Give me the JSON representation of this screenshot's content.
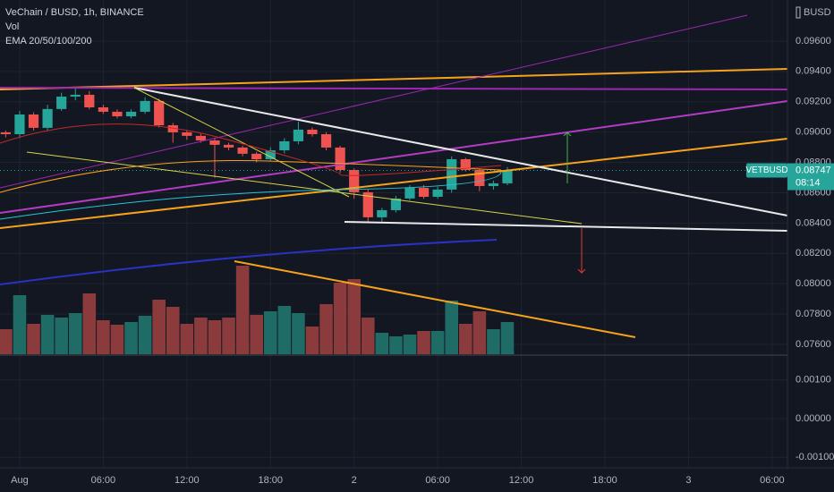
{
  "chart_data": {
    "type": "candlestick",
    "title": "VeChain / BUSD, 1h, BINANCE",
    "indicators": [
      "Vol",
      "EMA 20/50/100/200"
    ],
    "currency": "BUSD",
    "symbol": "VETBUSD",
    "last_price": 0.08747,
    "countdown": "08:14",
    "colors": {
      "up": "#26a69a",
      "down": "#ef5350",
      "volume_up": "#1f6b66",
      "volume_down": "#8c3b3d"
    },
    "open": [
      0.08998,
      0.08986,
      0.09116,
      0.09028,
      0.09152,
      0.09234,
      0.09246,
      0.09163,
      0.09134,
      0.09104,
      0.09134,
      0.09205,
      0.09045,
      0.08998,
      0.08975,
      0.08945,
      0.08916,
      0.08898,
      0.08857,
      0.08821,
      0.0888,
      0.08939,
      0.09016,
      0.08986,
      0.08898,
      0.0875,
      0.08603,
      0.08438,
      0.08485,
      0.08562,
      0.08632,
      0.08573,
      0.08621,
      0.08821,
      0.0875,
      0.08644,
      0.08662
    ],
    "high": [
      0.0901,
      0.0914,
      0.0913,
      0.0918,
      0.0926,
      0.0929,
      0.0927,
      0.0918,
      0.0915,
      0.0915,
      0.0923,
      0.0922,
      0.0906,
      0.0901,
      0.0899,
      0.0896,
      0.0893,
      0.0891,
      0.0887,
      0.089,
      0.0896,
      0.0907,
      0.0903,
      0.09,
      0.0891,
      0.0876,
      0.0862,
      0.085,
      0.0858,
      0.0865,
      0.0865,
      0.0864,
      0.0884,
      0.0883,
      0.0876,
      0.0868,
      0.0877
    ],
    "low": [
      0.08965,
      0.0896,
      0.0901,
      0.0901,
      0.0914,
      0.0921,
      0.0915,
      0.0912,
      0.0909,
      0.0909,
      0.0912,
      0.0903,
      0.0893,
      0.0895,
      0.0893,
      0.087,
      0.0888,
      0.0884,
      0.088,
      0.0881,
      0.0886,
      0.0892,
      0.0897,
      0.0888,
      0.0873,
      0.0856,
      0.084,
      0.0841,
      0.0847,
      0.0855,
      0.0856,
      0.0856,
      0.086,
      0.0874,
      0.0861,
      0.0862,
      0.0865
    ],
    "close": [
      0.08986,
      0.09116,
      0.09028,
      0.09152,
      0.09234,
      0.09246,
      0.09163,
      0.09134,
      0.09104,
      0.09134,
      0.09205,
      0.09045,
      0.08998,
      0.08975,
      0.08945,
      0.08916,
      0.08898,
      0.08857,
      0.08821,
      0.0888,
      0.08939,
      0.09016,
      0.08986,
      0.08898,
      0.0875,
      0.08603,
      0.08438,
      0.08485,
      0.08562,
      0.08632,
      0.08573,
      0.08621,
      0.08821,
      0.0875,
      0.08644,
      0.08662,
      0.08747
    ],
    "volume": [
      28,
      66,
      34,
      44,
      41,
      46,
      68,
      38,
      33,
      36,
      43,
      61,
      53,
      34,
      41,
      38,
      41,
      99,
      44,
      48,
      54,
      46,
      31,
      56,
      80,
      84,
      41,
      24,
      20,
      22,
      26,
      26,
      60,
      34,
      48,
      28,
      36
    ],
    "volume_ylim": [
      0,
      140
    ],
    "xlim": [
      -0.41,
      56.1
    ],
    "xticks": [
      {
        "value": 1,
        "label": "Aug"
      },
      {
        "value": 7,
        "label": "06:00"
      },
      {
        "value": 13,
        "label": "12:00"
      },
      {
        "value": 19,
        "label": "18:00"
      },
      {
        "value": 25,
        "label": "2"
      },
      {
        "value": 31,
        "label": "06:00"
      },
      {
        "value": 37,
        "label": "12:00"
      },
      {
        "value": 43,
        "label": "18:00"
      },
      {
        "value": 49,
        "label": "3"
      },
      {
        "value": 55,
        "label": "06:00"
      }
    ],
    "ylim": [
      0.07529,
      0.09871
    ],
    "yticks": [
      {
        "value": 0.096,
        "label": "0.09600"
      },
      {
        "value": 0.094,
        "label": "0.09400"
      },
      {
        "value": 0.092,
        "label": "0.09200"
      },
      {
        "value": 0.09,
        "label": "0.09000"
      },
      {
        "value": 0.088,
        "label": "0.08800"
      },
      {
        "value": 0.086,
        "label": "0.08600"
      },
      {
        "value": 0.084,
        "label": "0.08400"
      },
      {
        "value": 0.082,
        "label": "0.08200"
      },
      {
        "value": 0.08,
        "label": "0.08000"
      },
      {
        "value": 0.078,
        "label": "0.07800"
      },
      {
        "value": 0.076,
        "label": "0.07600"
      }
    ],
    "indicator_ylim": [
      -0.00127,
      0.00164
    ],
    "indicator_yticks": [
      {
        "value": 0.001,
        "label": "0.00100"
      },
      {
        "value": 0,
        "label": "0.00000"
      },
      {
        "value": -0.001,
        "label": "-0.00100"
      }
    ]
  }
}
